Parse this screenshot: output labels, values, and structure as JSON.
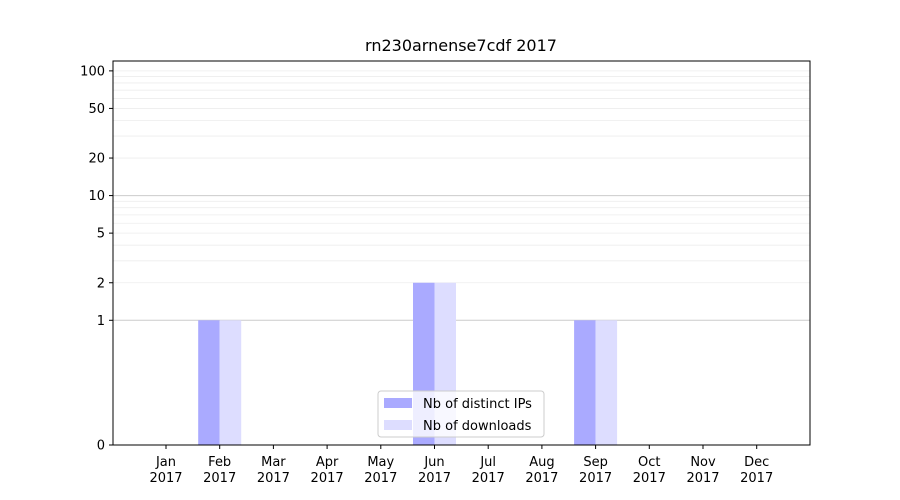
{
  "chart_data": {
    "type": "bar",
    "title": "rn230arnense7cdf 2017",
    "categories": [
      "Jan\n2017",
      "Feb\n2017",
      "Mar\n2017",
      "Apr\n2017",
      "May\n2017",
      "Jun\n2017",
      "Jul\n2017",
      "Aug\n2017",
      "Sep\n2017",
      "Oct\n2017",
      "Nov\n2017",
      "Dec\n2017"
    ],
    "series": [
      {
        "name": "Nb of distinct IPs",
        "values": [
          0,
          1,
          0,
          0,
          0,
          2,
          0,
          0,
          1,
          0,
          0,
          0
        ],
        "color": "#aaaaff"
      },
      {
        "name": "Nb of downloads",
        "values": [
          0,
          1,
          0,
          0,
          0,
          2,
          0,
          0,
          1,
          0,
          0,
          0
        ],
        "color": "#ddddff"
      }
    ],
    "yscale": "symlog",
    "yticks": [
      0,
      1,
      2,
      5,
      10,
      20,
      50,
      100
    ],
    "ylim": [
      0,
      120
    ],
    "grid": true,
    "legend_position": "bottom-center"
  }
}
